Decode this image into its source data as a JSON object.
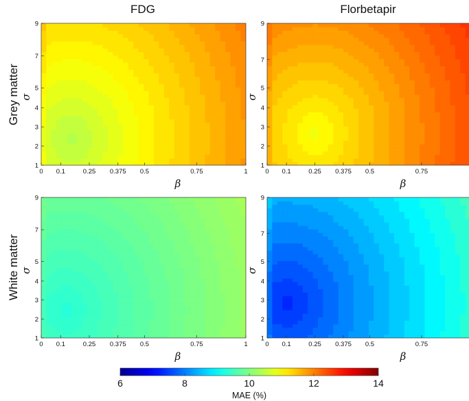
{
  "columns": [
    "FDG",
    "Florbetapir"
  ],
  "rows": [
    "Grey matter",
    "White matter"
  ],
  "colorbar": {
    "label": "MAE (%)",
    "min": 6,
    "max": 14,
    "ticks": [
      6,
      8,
      10,
      12,
      14
    ]
  },
  "chart_data": [
    {
      "type": "heatmap",
      "tracer": "FDG",
      "tissue": "Grey matter",
      "xlabel": "β",
      "ylabel": "σ",
      "x_ticks": [
        "0",
        "0.1",
        "0.25",
        "0.375",
        "0.5",
        "0.75",
        "1"
      ],
      "x_tick_values": [
        0,
        0.1,
        0.25,
        0.375,
        0.5,
        0.75,
        1
      ],
      "y_ticks": [
        "1",
        "2",
        "3",
        "4",
        "5",
        "7",
        "9"
      ],
      "y_tick_values": [
        1,
        2,
        3,
        4,
        5,
        7,
        9
      ],
      "xlim": [
        0,
        1
      ],
      "ylim": [
        1,
        9
      ],
      "mae_range": [
        10.4,
        12.0
      ],
      "minimum_at": {
        "beta": 0.15,
        "sigma": 2.5,
        "mae": 10.4
      }
    },
    {
      "type": "heatmap",
      "tracer": "Florbetapir",
      "tissue": "Grey matter",
      "xlabel": "β",
      "ylabel": "σ",
      "x_ticks": [
        "0",
        "0.1",
        "0.25",
        "0.375",
        "0.5",
        "0.75"
      ],
      "x_tick_values": [
        0,
        0.1,
        0.25,
        0.375,
        0.5,
        0.75
      ],
      "y_ticks": [
        "1",
        "2",
        "3",
        "4",
        "5",
        "7",
        "9"
      ],
      "y_tick_values": [
        1,
        2,
        3,
        4,
        5,
        7,
        9
      ],
      "xlim": [
        0,
        1
      ],
      "ylim": [
        1,
        9
      ],
      "mae_range": [
        10.9,
        12.6
      ],
      "minimum_at": {
        "beta": 0.25,
        "sigma": 2.8,
        "mae": 10.9
      }
    },
    {
      "type": "heatmap",
      "tracer": "FDG",
      "tissue": "White matter",
      "xlabel": "β",
      "ylabel": "σ",
      "x_ticks": [
        "0",
        "0.1",
        "0.25",
        "0.375",
        "0.5",
        "0.75",
        "1"
      ],
      "x_tick_values": [
        0,
        0.1,
        0.25,
        0.375,
        0.5,
        0.75,
        1
      ],
      "y_ticks": [
        "1",
        "2",
        "3",
        "4",
        "5",
        "7",
        "9"
      ],
      "y_tick_values": [
        1,
        2,
        3,
        4,
        5,
        7,
        9
      ],
      "xlim": [
        0,
        1
      ],
      "ylim": [
        1,
        9
      ],
      "mae_range": [
        9.3,
        10.3
      ],
      "minimum_at": {
        "beta": 0.12,
        "sigma": 2.6,
        "mae": 9.3
      }
    },
    {
      "type": "heatmap",
      "tracer": "Florbetapir",
      "tissue": "White matter",
      "xlabel": "β",
      "ylabel": "σ",
      "x_ticks": [
        "0",
        "0.1",
        "0.25",
        "0.375",
        "0.5",
        "0.75"
      ],
      "x_tick_values": [
        0,
        0.1,
        0.25,
        0.375,
        0.5,
        0.75
      ],
      "y_ticks": [
        "1",
        "2",
        "3",
        "4",
        "5",
        "7",
        "9"
      ],
      "y_tick_values": [
        1,
        2,
        3,
        4,
        5,
        7,
        9
      ],
      "xlim": [
        0,
        1
      ],
      "ylim": [
        1,
        9
      ],
      "mae_range": [
        7.3,
        9.5
      ],
      "minimum_at": {
        "beta": 0.1,
        "sigma": 3.0,
        "mae": 7.3
      }
    }
  ]
}
